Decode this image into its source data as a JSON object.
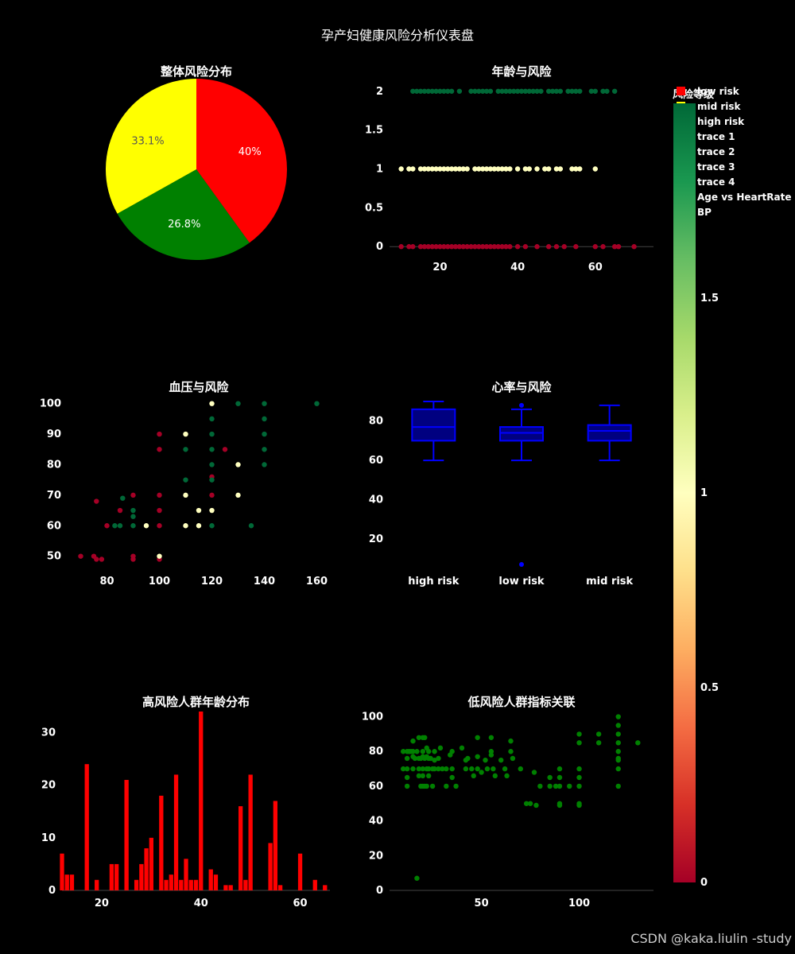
{
  "dashboard": {
    "title": "孕产妇健康风险分析仪表盘",
    "watermark": "CSDN @kaka.liulin -study"
  },
  "legend": {
    "title": "风险等级",
    "items": [
      {
        "label": "low risk",
        "color": "#ff0000"
      },
      {
        "label": "mid risk",
        "color": "#ffff00"
      },
      {
        "label": "high risk",
        "color": ""
      },
      {
        "label": "trace 1",
        "color": ""
      },
      {
        "label": "trace 2",
        "color": ""
      },
      {
        "label": "trace 3",
        "color": ""
      },
      {
        "label": "trace 4",
        "color": ""
      },
      {
        "label": "Age vs HeartRate",
        "color": ""
      },
      {
        "label": "BP",
        "color": ""
      }
    ]
  },
  "colorbar": {
    "ticks": [
      "0",
      "0.5",
      "1",
      "1.5"
    ],
    "range": [
      0,
      2
    ],
    "colorscale": [
      "#a50026",
      "#d73027",
      "#f46d43",
      "#fdae61",
      "#fee08b",
      "#ffffbf",
      "#d9ef8b",
      "#a6d96a",
      "#66bd63",
      "#1a9850",
      "#006837"
    ]
  },
  "chart_data": [
    {
      "id": "pie",
      "type": "pie",
      "title": "整体风险分布",
      "slices": [
        {
          "label": "high risk",
          "value": 40.0,
          "text": "40%",
          "color": "#ff0000"
        },
        {
          "label": "low risk",
          "value": 26.8,
          "text": "26.8%",
          "color": "#008000"
        },
        {
          "label": "mid risk",
          "value": 33.1,
          "text": "33.1%",
          "color": "#ffff00"
        }
      ]
    },
    {
      "id": "age_risk",
      "type": "scatter",
      "title": "年龄与风险",
      "xlim": [
        7,
        75
      ],
      "ylim": [
        -0.1,
        2.1
      ],
      "xticks": [
        20,
        40,
        60
      ],
      "yticks": [
        0,
        0.5,
        1,
        1.5,
        2
      ],
      "series": [
        {
          "y": 2,
          "color": "#006837",
          "x": [
            13,
            14,
            15,
            16,
            17,
            18,
            19,
            20,
            21,
            22,
            23,
            25,
            28,
            29,
            30,
            31,
            32,
            33,
            35,
            36,
            37,
            38,
            39,
            40,
            41,
            42,
            43,
            44,
            45,
            46,
            48,
            49,
            50,
            51,
            53,
            54,
            55,
            56,
            59,
            60,
            62,
            63,
            65
          ]
        },
        {
          "y": 1,
          "color": "#ffffbf",
          "x": [
            10,
            12,
            13,
            15,
            16,
            17,
            18,
            19,
            20,
            21,
            22,
            23,
            24,
            25,
            26,
            27,
            29,
            30,
            31,
            32,
            33,
            34,
            35,
            36,
            37,
            38,
            40,
            42,
            43,
            45,
            47,
            48,
            50,
            51,
            54,
            55,
            56,
            60
          ]
        },
        {
          "y": 0,
          "color": "#a50026",
          "x": [
            10,
            12,
            13,
            15,
            16,
            17,
            18,
            19,
            20,
            21,
            22,
            23,
            24,
            25,
            26,
            27,
            28,
            29,
            30,
            31,
            32,
            33,
            34,
            35,
            36,
            37,
            38,
            40,
            42,
            45,
            48,
            50,
            52,
            55,
            60,
            62,
            65,
            66,
            70
          ]
        }
      ]
    },
    {
      "id": "bp_risk",
      "type": "scatter",
      "title": "血压与风险",
      "xlim": [
        65,
        165
      ],
      "ylim": [
        46,
        102
      ],
      "xticks": [
        80,
        100,
        120,
        140,
        160
      ],
      "yticks": [
        50,
        60,
        70,
        80,
        90,
        100
      ],
      "points": [
        [
          70,
          50,
          0
        ],
        [
          75,
          50,
          0
        ],
        [
          76,
          49,
          0
        ],
        [
          78,
          49,
          0
        ],
        [
          76,
          68,
          0
        ],
        [
          80,
          60,
          0
        ],
        [
          85,
          65,
          0
        ],
        [
          90,
          70,
          0
        ],
        [
          90,
          50,
          0
        ],
        [
          90,
          49,
          0
        ],
        [
          100,
          90,
          0
        ],
        [
          100,
          85,
          0
        ],
        [
          100,
          70,
          0
        ],
        [
          100,
          65,
          0
        ],
        [
          100,
          60,
          0
        ],
        [
          100,
          49,
          0
        ],
        [
          120,
          76,
          0
        ],
        [
          120,
          70,
          0
        ],
        [
          125,
          85,
          0
        ],
        [
          83,
          60,
          2
        ],
        [
          85,
          60,
          2
        ],
        [
          86,
          69,
          2
        ],
        [
          90,
          65,
          2
        ],
        [
          90,
          63,
          2
        ],
        [
          90,
          60,
          2
        ],
        [
          110,
          85,
          2
        ],
        [
          110,
          75,
          2
        ],
        [
          120,
          95,
          2
        ],
        [
          120,
          90,
          2
        ],
        [
          120,
          85,
          2
        ],
        [
          120,
          80,
          2
        ],
        [
          120,
          75,
          2
        ],
        [
          120,
          60,
          2
        ],
        [
          130,
          100,
          2
        ],
        [
          140,
          100,
          2
        ],
        [
          140,
          95,
          2
        ],
        [
          140,
          90,
          2
        ],
        [
          140,
          85,
          2
        ],
        [
          140,
          80,
          2
        ],
        [
          135,
          60,
          2
        ],
        [
          160,
          100,
          2
        ],
        [
          95,
          60,
          1
        ],
        [
          100,
          50,
          1
        ],
        [
          110,
          90,
          1
        ],
        [
          110,
          70,
          1
        ],
        [
          110,
          60,
          1
        ],
        [
          115,
          65,
          1
        ],
        [
          115,
          60,
          1
        ],
        [
          120,
          100,
          1
        ],
        [
          120,
          65,
          1
        ],
        [
          130,
          80,
          1
        ],
        [
          130,
          70,
          1
        ]
      ]
    },
    {
      "id": "hr_risk",
      "type": "box",
      "title": "心率与风险",
      "categories": [
        "high risk",
        "low risk",
        "mid risk"
      ],
      "ylim": [
        5,
        92
      ],
      "yticks": [
        20,
        40,
        60,
        80
      ],
      "boxes": [
        {
          "min": 60,
          "q1": 70,
          "median": 77,
          "q3": 86,
          "max": 90,
          "outliers": []
        },
        {
          "min": 60,
          "q1": 70,
          "median": 74,
          "q3": 77,
          "max": 86,
          "outliers": [
            88,
            7
          ]
        },
        {
          "min": 60,
          "q1": 70,
          "median": 75,
          "q3": 78,
          "max": 88,
          "outliers": []
        }
      ]
    },
    {
      "id": "high_age",
      "type": "bar",
      "title": "高风险人群年龄分布",
      "xlim": [
        12,
        66
      ],
      "ylim": [
        0,
        34
      ],
      "xticks": [
        20,
        40,
        60
      ],
      "yticks": [
        0,
        10,
        20,
        30
      ],
      "bars": [
        [
          12,
          7
        ],
        [
          13,
          3
        ],
        [
          14,
          3
        ],
        [
          17,
          24
        ],
        [
          19,
          2
        ],
        [
          22,
          5
        ],
        [
          23,
          5
        ],
        [
          25,
          21
        ],
        [
          27,
          2
        ],
        [
          28,
          5
        ],
        [
          29,
          8
        ],
        [
          30,
          10
        ],
        [
          32,
          18
        ],
        [
          33,
          2
        ],
        [
          34,
          3
        ],
        [
          35,
          22
        ],
        [
          36,
          2
        ],
        [
          37,
          6
        ],
        [
          38,
          2
        ],
        [
          39,
          2
        ],
        [
          40,
          34
        ],
        [
          42,
          4
        ],
        [
          43,
          3
        ],
        [
          45,
          1
        ],
        [
          46,
          1
        ],
        [
          48,
          16
        ],
        [
          49,
          2
        ],
        [
          50,
          22
        ],
        [
          54,
          9
        ],
        [
          55,
          17
        ],
        [
          56,
          1
        ],
        [
          60,
          7
        ],
        [
          63,
          2
        ],
        [
          65,
          1
        ]
      ]
    },
    {
      "id": "low_corr",
      "type": "scatter",
      "title": "低风险人群指标关联",
      "xlim": [
        3,
        138
      ],
      "ylim": [
        0,
        103
      ],
      "xticks": [
        50,
        100
      ],
      "yticks": [
        0,
        20,
        40,
        60,
        80,
        100
      ],
      "color": "#008000",
      "points": [
        [
          10,
          70
        ],
        [
          10,
          80
        ],
        [
          12,
          80
        ],
        [
          12,
          76
        ],
        [
          12,
          70
        ],
        [
          12,
          65
        ],
        [
          12,
          60
        ],
        [
          13,
          80
        ],
        [
          14,
          80
        ],
        [
          15,
          86
        ],
        [
          15,
          80
        ],
        [
          15,
          77
        ],
        [
          15,
          70
        ],
        [
          16,
          76
        ],
        [
          17,
          80
        ],
        [
          17,
          7
        ],
        [
          18,
          88
        ],
        [
          18,
          76
        ],
        [
          18,
          70
        ],
        [
          18,
          66
        ],
        [
          19,
          76
        ],
        [
          19,
          60
        ],
        [
          20,
          88
        ],
        [
          20,
          80
        ],
        [
          20,
          77
        ],
        [
          20,
          70
        ],
        [
          20,
          66
        ],
        [
          20,
          60
        ],
        [
          21,
          88
        ],
        [
          21,
          76
        ],
        [
          21,
          60
        ],
        [
          22,
          82
        ],
        [
          22,
          77
        ],
        [
          22,
          70
        ],
        [
          22,
          60
        ],
        [
          23,
          80
        ],
        [
          23,
          76
        ],
        [
          23,
          70
        ],
        [
          23,
          66
        ],
        [
          24,
          76
        ],
        [
          25,
          70
        ],
        [
          25,
          60
        ],
        [
          26,
          80
        ],
        [
          26,
          75
        ],
        [
          26,
          70
        ],
        [
          28,
          76
        ],
        [
          28,
          70
        ],
        [
          29,
          82
        ],
        [
          30,
          70
        ],
        [
          32,
          70
        ],
        [
          32,
          60
        ],
        [
          34,
          78
        ],
        [
          35,
          80
        ],
        [
          35,
          70
        ],
        [
          35,
          65
        ],
        [
          37,
          60
        ],
        [
          40,
          82
        ],
        [
          42,
          75
        ],
        [
          42,
          70
        ],
        [
          43,
          76
        ],
        [
          45,
          70
        ],
        [
          46,
          66
        ],
        [
          48,
          88
        ],
        [
          48,
          77
        ],
        [
          48,
          70
        ],
        [
          50,
          68
        ],
        [
          52,
          75
        ],
        [
          53,
          70
        ],
        [
          55,
          88
        ],
        [
          55,
          80
        ],
        [
          55,
          78
        ],
        [
          56,
          70
        ],
        [
          57,
          66
        ],
        [
          60,
          75
        ],
        [
          62,
          70
        ],
        [
          63,
          66
        ],
        [
          65,
          86
        ],
        [
          65,
          80
        ],
        [
          66,
          76
        ],
        [
          70,
          70
        ],
        [
          73,
          50
        ],
        [
          75,
          50
        ],
        [
          77,
          68
        ],
        [
          78,
          49
        ],
        [
          80,
          60
        ],
        [
          85,
          65
        ],
        [
          85,
          60
        ],
        [
          88,
          60
        ],
        [
          90,
          70
        ],
        [
          90,
          65
        ],
        [
          90,
          60
        ],
        [
          90,
          50
        ],
        [
          90,
          49
        ],
        [
          95,
          60
        ],
        [
          100,
          90
        ],
        [
          100,
          85
        ],
        [
          100,
          70
        ],
        [
          100,
          65
        ],
        [
          100,
          60
        ],
        [
          100,
          50
        ],
        [
          100,
          49
        ],
        [
          110,
          90
        ],
        [
          110,
          85
        ],
        [
          120,
          100
        ],
        [
          120,
          95
        ],
        [
          120,
          90
        ],
        [
          120,
          85
        ],
        [
          120,
          80
        ],
        [
          120,
          76
        ],
        [
          120,
          75
        ],
        [
          120,
          70
        ],
        [
          120,
          60
        ],
        [
          130,
          85
        ]
      ]
    }
  ]
}
